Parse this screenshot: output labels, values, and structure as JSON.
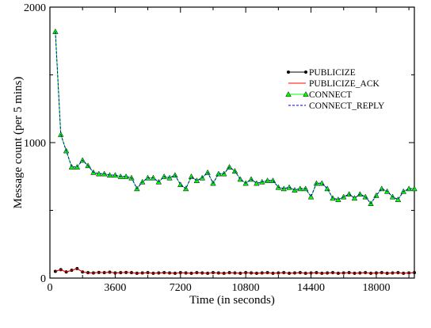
{
  "chart_data": {
    "type": "line",
    "xlabel": "Time (in seconds)",
    "ylabel": "Message count (per 5 mins)",
    "xlim": [
      0,
      20100
    ],
    "ylim": [
      0,
      2000
    ],
    "xticks": [
      0,
      3600,
      7200,
      10800,
      14400,
      18000
    ],
    "yticks": [
      0,
      1000,
      2000
    ],
    "legend_position": "top-right",
    "x": [
      300,
      600,
      900,
      1200,
      1500,
      1800,
      2100,
      2400,
      2700,
      3000,
      3300,
      3600,
      3900,
      4200,
      4500,
      4800,
      5100,
      5400,
      5700,
      6000,
      6300,
      6600,
      6900,
      7200,
      7500,
      7800,
      8100,
      8400,
      8700,
      9000,
      9300,
      9600,
      9900,
      10200,
      10500,
      10800,
      11100,
      11400,
      11700,
      12000,
      12300,
      12600,
      12900,
      13200,
      13500,
      13800,
      14100,
      14400,
      14700,
      15000,
      15300,
      15600,
      15900,
      16200,
      16500,
      16800,
      17100,
      17400,
      17700,
      18000,
      18300,
      18600,
      18900,
      19200,
      19500,
      19800,
      20100
    ],
    "series": [
      {
        "name": "PUBLICIZE",
        "color": "#000000",
        "style": "solid",
        "marker": "circle",
        "values": [
          50,
          62,
          45,
          58,
          70,
          45,
          40,
          38,
          42,
          40,
          44,
          38,
          40,
          42,
          40,
          36,
          38,
          40,
          36,
          38,
          40,
          38,
          36,
          40,
          38,
          36,
          40,
          38,
          36,
          40,
          38,
          36,
          40,
          38,
          36,
          40,
          38,
          36,
          38,
          40,
          36,
          38,
          40,
          36,
          38,
          40,
          36,
          38,
          40,
          36,
          38,
          40,
          36,
          38,
          40,
          36,
          38,
          40,
          36,
          38,
          40,
          36,
          38,
          40,
          36,
          38,
          40
        ]
      },
      {
        "name": "PUBLICIZE_ACK",
        "color": "#ff0000",
        "style": "solid",
        "marker": "none",
        "values": [
          50,
          62,
          45,
          58,
          70,
          45,
          40,
          38,
          42,
          40,
          44,
          38,
          40,
          42,
          40,
          36,
          38,
          40,
          36,
          38,
          40,
          38,
          36,
          40,
          38,
          36,
          40,
          38,
          36,
          40,
          38,
          36,
          40,
          38,
          36,
          40,
          38,
          36,
          38,
          40,
          36,
          38,
          40,
          36,
          38,
          40,
          36,
          38,
          40,
          36,
          38,
          40,
          36,
          38,
          40,
          36,
          38,
          40,
          36,
          38,
          40,
          36,
          38,
          40,
          36,
          38,
          40
        ]
      },
      {
        "name": "CONNECT",
        "color": "#00ff00",
        "style": "solid",
        "marker": "triangle",
        "values": [
          1820,
          1060,
          940,
          820,
          820,
          870,
          830,
          780,
          770,
          770,
          760,
          760,
          750,
          750,
          740,
          660,
          710,
          740,
          740,
          710,
          750,
          740,
          760,
          690,
          660,
          750,
          720,
          740,
          780,
          700,
          770,
          770,
          820,
          790,
          730,
          700,
          730,
          700,
          710,
          720,
          720,
          670,
          660,
          670,
          650,
          660,
          660,
          600,
          700,
          700,
          660,
          590,
          580,
          600,
          620,
          590,
          620,
          600,
          550,
          610,
          660,
          640,
          600,
          580,
          640,
          660,
          660
        ]
      },
      {
        "name": "CONNECT_REPLY",
        "color": "#0000cc",
        "style": "dashed",
        "marker": "none",
        "values": [
          1820,
          1060,
          940,
          820,
          820,
          870,
          830,
          780,
          770,
          770,
          760,
          760,
          750,
          750,
          740,
          660,
          710,
          740,
          740,
          710,
          750,
          740,
          760,
          690,
          660,
          750,
          720,
          740,
          780,
          700,
          770,
          770,
          820,
          790,
          730,
          700,
          730,
          700,
          710,
          720,
          720,
          670,
          660,
          670,
          650,
          660,
          660,
          600,
          700,
          700,
          660,
          590,
          580,
          600,
          620,
          590,
          620,
          600,
          550,
          610,
          660,
          640,
          600,
          580,
          640,
          660,
          660
        ]
      }
    ]
  }
}
